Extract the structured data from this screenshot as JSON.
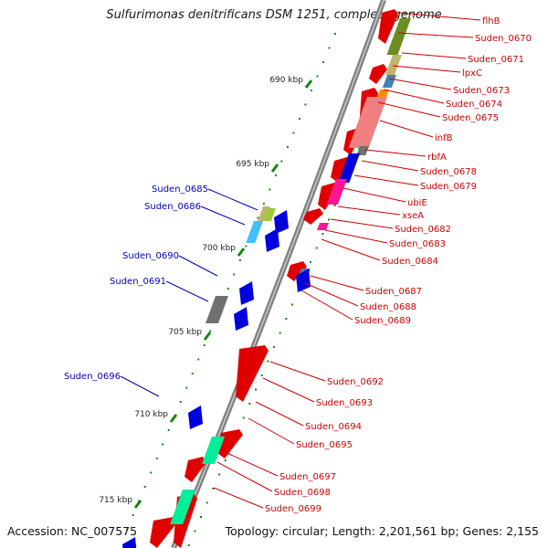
{
  "title": "Sulfurimonas denitrificans DSM 1251, complete genome",
  "accession": "Accession: NC_007575",
  "topology": "Topology: circular; Length: 2,201,561 bp; Genes: 2,155",
  "colors": {
    "forward": "#e00000",
    "reverse": "#0000dd",
    "label_forward": "#cc0000",
    "label_reverse": "#0000bb",
    "backbone": "#808080",
    "tick": "#118811",
    "olive": "#6b8e23",
    "tan": "#c8b888",
    "steel": "#4682b4",
    "orange": "#ff8c00",
    "salmon": "#f08080",
    "gray": "#707070",
    "magenta": "#ff1493",
    "lightblue": "#40c0ff",
    "khaki": "#bdb76b",
    "lime": "#9acd32",
    "springgreen": "#00ee99"
  },
  "scale_ticks": [
    "690 kbp",
    "695 kbp",
    "700 kbp",
    "705 kbp",
    "710 kbp",
    "715 kbp"
  ],
  "labels_forward": [
    "flhB",
    "Suden_0670",
    "Suden_0671",
    "lpxC",
    "Suden_0673",
    "Suden_0674",
    "Suden_0675",
    "infB",
    "rbfA",
    "Suden_0678",
    "Suden_0679",
    "ubiE",
    "xseA",
    "Suden_0682",
    "Suden_0683",
    "Suden_0684",
    "Suden_0687",
    "Suden_0688",
    "Suden_0689",
    "Suden_0692",
    "Suden_0693",
    "Suden_0694",
    "Suden_0695",
    "Suden_0697",
    "Suden_0698",
    "Suden_0699"
  ],
  "labels_reverse": [
    "Suden_0685",
    "Suden_0686",
    "Suden_0690",
    "Suden_0691",
    "Suden_0696"
  ]
}
